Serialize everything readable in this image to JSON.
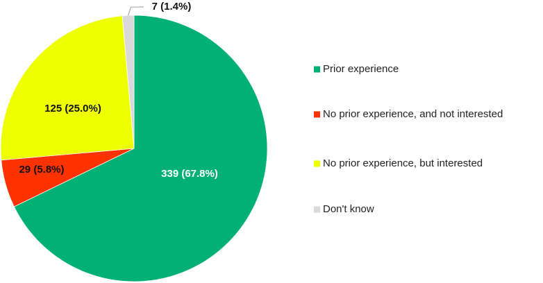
{
  "chart_data": {
    "type": "pie",
    "categories": [
      "Prior experience",
      "No prior experience, and not interested",
      "No prior experience, but interested",
      "Don't know"
    ],
    "values": [
      339,
      29,
      125,
      7
    ],
    "value_labels": [
      "339 (67.8%)",
      "29 (5.8%)",
      "125 (25.0%)",
      "7 (1.4%)"
    ],
    "colors": [
      "#00b074",
      "#ff3300",
      "#eeff00",
      "#d9d9d9"
    ]
  }
}
